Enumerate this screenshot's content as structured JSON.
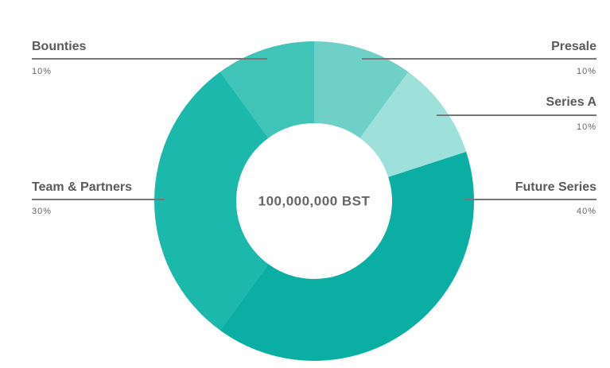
{
  "chart_data": {
    "type": "pie",
    "center_label": "100,000,000 BST",
    "categories": [
      "Presale",
      "Series A",
      "Future Series",
      "Team & Partners",
      "Bounties"
    ],
    "values": [
      10,
      10,
      40,
      30,
      10
    ],
    "value_labels": [
      "10%",
      "10%",
      "40%",
      "30%",
      "10%"
    ],
    "colors": [
      "#6fd0c8",
      "#9ee0da",
      "#0aaea2",
      "#1bb8ab",
      "#40c4b8"
    ]
  }
}
